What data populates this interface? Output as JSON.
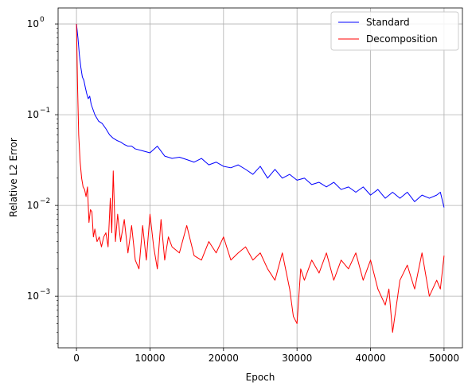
{
  "chart_data": {
    "type": "line",
    "title": "",
    "xlabel": "Epoch",
    "ylabel": "Relative L2 Error",
    "xlim": [
      -2500,
      52500
    ],
    "ylim": [
      0.00027,
      1.5
    ],
    "yscale": "log",
    "grid": true,
    "legend": "top-right",
    "x_ticks": [
      0,
      10000,
      20000,
      30000,
      40000,
      50000
    ],
    "y_ticks": [
      {
        "value": 0.001,
        "base": "10",
        "exp": "−3"
      },
      {
        "value": 0.01,
        "base": "10",
        "exp": "−2"
      },
      {
        "value": 0.1,
        "base": "10",
        "exp": "−1"
      },
      {
        "value": 1,
        "base": "10",
        "exp": "0"
      }
    ],
    "series": [
      {
        "name": "Standard",
        "color": "#0000ff",
        "x": [
          0,
          200,
          400,
          600,
          800,
          1000,
          1200,
          1400,
          1600,
          1800,
          2000,
          2500,
          3000,
          3500,
          4000,
          4500,
          5000,
          5500,
          6000,
          6500,
          7000,
          7500,
          8000,
          9000,
          10000,
          11000,
          12000,
          13000,
          14000,
          15000,
          16000,
          17000,
          18000,
          19000,
          20000,
          21000,
          22000,
          23000,
          24000,
          25000,
          26000,
          27000,
          28000,
          29000,
          30000,
          31000,
          32000,
          33000,
          34000,
          35000,
          36000,
          37000,
          38000,
          39000,
          40000,
          41000,
          42000,
          43000,
          44000,
          45000,
          46000,
          47000,
          48000,
          49000,
          49500,
          50000
        ],
        "y": [
          1.0,
          0.7,
          0.45,
          0.33,
          0.26,
          0.24,
          0.2,
          0.17,
          0.15,
          0.16,
          0.13,
          0.1,
          0.085,
          0.08,
          0.07,
          0.06,
          0.055,
          0.052,
          0.05,
          0.047,
          0.045,
          0.045,
          0.042,
          0.04,
          0.038,
          0.045,
          0.035,
          0.033,
          0.034,
          0.032,
          0.03,
          0.033,
          0.028,
          0.03,
          0.027,
          0.026,
          0.028,
          0.025,
          0.022,
          0.027,
          0.02,
          0.025,
          0.02,
          0.022,
          0.019,
          0.02,
          0.017,
          0.018,
          0.016,
          0.018,
          0.015,
          0.016,
          0.014,
          0.016,
          0.013,
          0.015,
          0.012,
          0.014,
          0.012,
          0.014,
          0.011,
          0.013,
          0.012,
          0.013,
          0.014,
          0.0095
        ]
      },
      {
        "name": "Decomposition",
        "color": "#ff0000",
        "x": [
          0,
          150,
          300,
          500,
          700,
          900,
          1100,
          1300,
          1500,
          1700,
          1900,
          2100,
          2300,
          2500,
          2800,
          3100,
          3400,
          3700,
          4000,
          4300,
          4600,
          4800,
          5000,
          5300,
          5600,
          6000,
          6500,
          7000,
          7500,
          8000,
          8500,
          9000,
          9500,
          10000,
          10500,
          11000,
          11500,
          12000,
          12500,
          13000,
          14000,
          15000,
          16000,
          17000,
          18000,
          19000,
          20000,
          21000,
          22000,
          23000,
          24000,
          25000,
          26000,
          27000,
          28000,
          29000,
          29500,
          30000,
          30500,
          31000,
          32000,
          33000,
          34000,
          35000,
          36000,
          37000,
          38000,
          39000,
          40000,
          41000,
          42000,
          42500,
          43000,
          44000,
          45000,
          46000,
          47000,
          48000,
          49000,
          49500,
          50000
        ],
        "y": [
          1.0,
          0.2,
          0.06,
          0.03,
          0.02,
          0.016,
          0.015,
          0.0125,
          0.016,
          0.0065,
          0.009,
          0.0085,
          0.0045,
          0.0055,
          0.004,
          0.0045,
          0.0035,
          0.0045,
          0.005,
          0.0035,
          0.012,
          0.005,
          0.024,
          0.004,
          0.008,
          0.004,
          0.007,
          0.003,
          0.006,
          0.0025,
          0.002,
          0.006,
          0.0025,
          0.008,
          0.0035,
          0.002,
          0.007,
          0.0025,
          0.0045,
          0.0035,
          0.003,
          0.006,
          0.0028,
          0.0025,
          0.004,
          0.003,
          0.0045,
          0.0025,
          0.003,
          0.0035,
          0.0025,
          0.003,
          0.002,
          0.0015,
          0.003,
          0.0012,
          0.0006,
          0.0005,
          0.002,
          0.0015,
          0.0025,
          0.0018,
          0.003,
          0.0015,
          0.0025,
          0.002,
          0.003,
          0.0015,
          0.0025,
          0.0012,
          0.0008,
          0.0012,
          0.0004,
          0.0015,
          0.0022,
          0.0012,
          0.003,
          0.001,
          0.0015,
          0.0012,
          0.0028
        ]
      }
    ]
  }
}
